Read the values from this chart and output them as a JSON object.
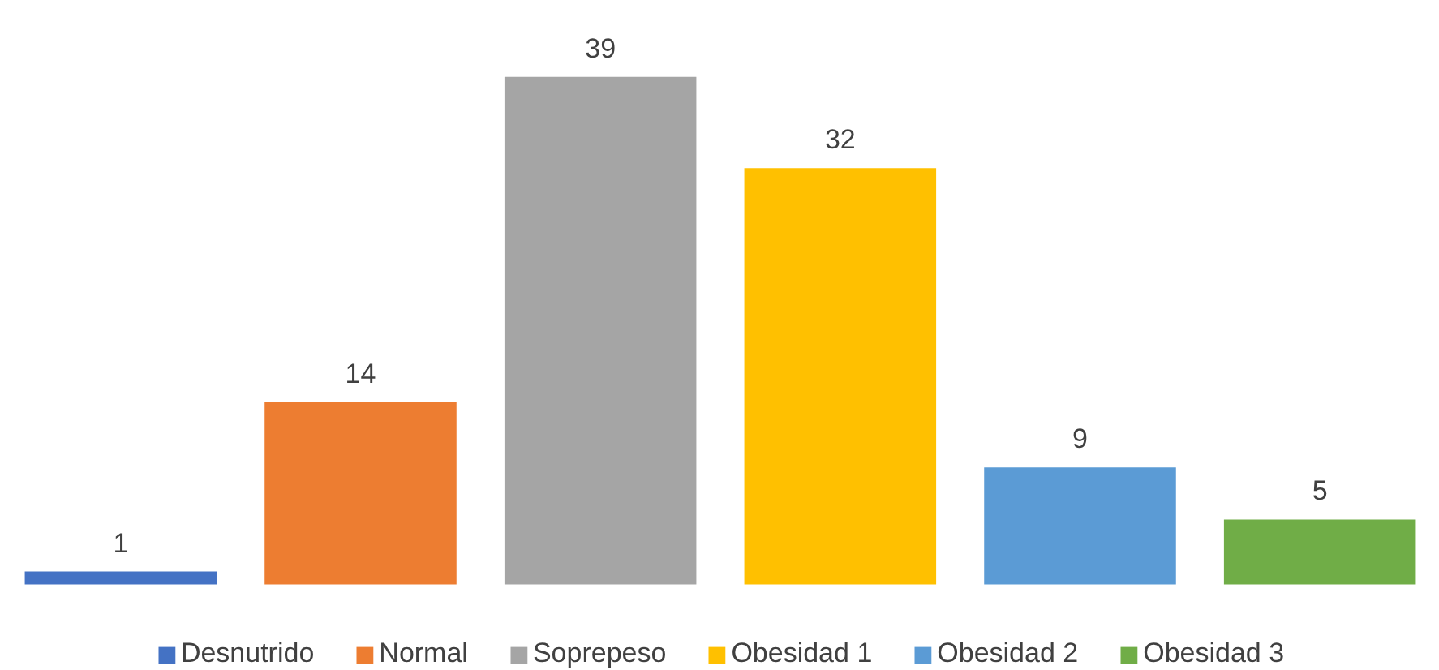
{
  "chart_data": {
    "type": "bar",
    "categories": [
      null
    ],
    "series": [
      {
        "name": "Desnutrido",
        "color": "#4472c4",
        "values": [
          1
        ]
      },
      {
        "name": "Normal",
        "color": "#ed7d31",
        "values": [
          14
        ]
      },
      {
        "name": "Soprepeso",
        "color": "#a5a5a5",
        "values": [
          39
        ]
      },
      {
        "name": "Obesidad 1",
        "color": "#ffc000",
        "values": [
          32
        ]
      },
      {
        "name": "Obesidad 2",
        "color": "#5b9bd5",
        "values": [
          9
        ]
      },
      {
        "name": "Obesidad 3",
        "color": "#70ad47",
        "values": [
          5
        ]
      }
    ],
    "data_labels": true,
    "legend": "bottom",
    "grid": false,
    "tick_labels": false
  }
}
